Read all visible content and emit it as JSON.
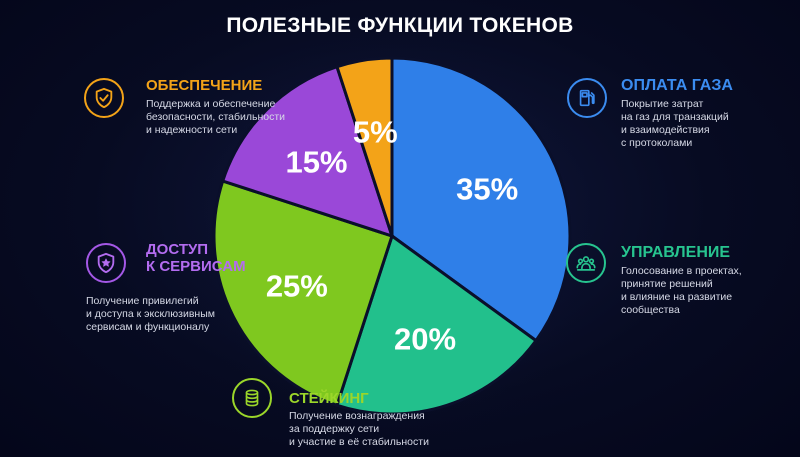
{
  "title": "ПОЛЕЗНЫЕ ФУНКЦИИ ТОКЕНОВ",
  "chart_data": {
    "type": "pie",
    "slices": [
      {
        "label": "ОПЛАТА ГАЗА",
        "value": 35,
        "text": "35%",
        "color": "#2f7fe8"
      },
      {
        "label": "УПРАВЛЕНИЕ",
        "value": 20,
        "text": "20%",
        "color": "#22c08c"
      },
      {
        "label": "СТЕЙКИНГ",
        "value": 25,
        "text": "25%",
        "color": "#7fc81f"
      },
      {
        "label": "ДОСТУП К СЕРВИСАМ",
        "value": 15,
        "text": "15%",
        "color": "#9a48d8"
      },
      {
        "label": "ОБЕСПЕЧЕНИЕ",
        "value": 5,
        "text": "5%",
        "color": "#f3a318"
      }
    ]
  },
  "callouts": {
    "gas": {
      "title": "ОПЛАТА ГАЗА",
      "lines": [
        "Покрытие затрат",
        "на газ для транзакций",
        "и взаимодействия",
        "с протоколами"
      ],
      "icon": "gas-pump-icon",
      "color": "#3b8cf0"
    },
    "governance": {
      "title": "УПРАВЛЕНИЕ",
      "lines": [
        "Голосование в проектах,",
        "принятие решений",
        "и влияние на развитие",
        "сообщества"
      ],
      "icon": "community-icon",
      "color": "#27c48f"
    },
    "staking": {
      "title": "СТЕЙКИНГ",
      "lines": [
        "Получение вознаграждения",
        "за поддержку сети",
        "и участие в её стабильности"
      ],
      "icon": "coin-stack-icon",
      "color": "#9bd62a"
    },
    "access": {
      "title_lines": [
        "ДОСТУП",
        "К СЕРВИСАМ"
      ],
      "lines": [
        "Получение привилегий",
        "и доступа к эксклюзивным",
        "сервисам и функционалу"
      ],
      "icon": "star-badge-icon",
      "color": "#a458e6"
    },
    "security": {
      "title": "ОБЕСПЕЧЕНИЕ",
      "lines": [
        "Поддержка и обеспечение",
        "безопасности, стабильности",
        "и надежности сети"
      ],
      "icon": "shield-check-icon",
      "color": "#f3a318"
    }
  }
}
